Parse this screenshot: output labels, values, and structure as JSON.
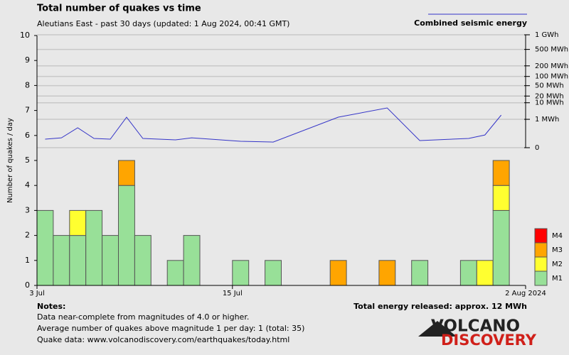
{
  "chart_data": {
    "type": "bar",
    "stacked": true,
    "title": "Total number of quakes vs time",
    "subtitle": "Aleutians East - past 30 days (updated: 1 Aug 2024, 00:41 GMT)",
    "y_label": "Number of quakes / day",
    "x": [
      0,
      1,
      2,
      3,
      4,
      5,
      6,
      7,
      8,
      9,
      10,
      11,
      12,
      13,
      14,
      15,
      16,
      17,
      18,
      19,
      20,
      21,
      22,
      23,
      24,
      25,
      26,
      27,
      28,
      29
    ],
    "xlim": [
      0,
      30
    ],
    "xticks": [
      {
        "value": 0,
        "label": "3 Jul"
      },
      {
        "value": 12,
        "label": "15 Jul"
      },
      {
        "value": 30,
        "label": "2 Aug 2024"
      }
    ],
    "ylim": [
      0,
      10
    ],
    "yticks": [
      0,
      1,
      2,
      3,
      4,
      5,
      6,
      7,
      8,
      9,
      10
    ],
    "y2lim": [
      0,
      1000
    ],
    "y2scale": "power",
    "y2exponent": 0.2,
    "y2ticks": [
      {
        "value": 0,
        "label": "0"
      },
      {
        "value": 1,
        "label": "1 MWh"
      },
      {
        "value": 10,
        "label": "10 MWh"
      },
      {
        "value": 20,
        "label": "20 MWh"
      },
      {
        "value": 50,
        "label": "50 MWh"
      },
      {
        "value": 100,
        "label": "100 MWh"
      },
      {
        "value": 200,
        "label": "200 MWh"
      },
      {
        "value": 500,
        "label": "500 MWh"
      },
      {
        "value": 1000,
        "label": "1 GWh"
      }
    ],
    "grid": true,
    "series": [
      {
        "name": "M1",
        "color": "#98e098",
        "values": [
          3,
          2,
          2,
          3,
          2,
          4,
          2,
          0,
          1,
          2,
          0,
          0,
          1,
          0,
          1,
          0,
          0,
          0,
          0,
          0,
          0,
          0,
          0,
          1,
          0,
          0,
          1,
          0,
          3,
          0
        ]
      },
      {
        "name": "M2",
        "color": "#ffff30",
        "values": [
          0,
          0,
          1,
          0,
          0,
          0,
          0,
          0,
          0,
          0,
          0,
          0,
          0,
          0,
          0,
          0,
          0,
          0,
          0,
          0,
          0,
          0,
          0,
          0,
          0,
          0,
          0,
          1,
          1,
          0
        ]
      },
      {
        "name": "M3",
        "color": "#ffa500",
        "values": [
          0,
          0,
          0,
          0,
          0,
          1,
          0,
          0,
          0,
          0,
          0,
          0,
          0,
          0,
          0,
          0,
          0,
          0,
          1,
          0,
          0,
          1,
          0,
          0,
          0,
          0,
          0,
          0,
          1,
          0
        ]
      },
      {
        "name": "M4",
        "color": "#ff0000",
        "values": [
          0,
          0,
          0,
          0,
          0,
          0,
          0,
          0,
          0,
          0,
          0,
          0,
          0,
          0,
          0,
          0,
          0,
          0,
          0,
          0,
          0,
          0,
          0,
          0,
          0,
          0,
          0,
          0,
          0,
          0
        ]
      },
      {
        "name": "Combined seismic energy",
        "type": "line",
        "axis": "y2",
        "color": "#3535c8",
        "x": [
          0.5,
          1.5,
          2.5,
          3.5,
          4.5,
          5.5,
          6.5,
          8.5,
          9.5,
          12.5,
          14.5,
          18.5,
          21.5,
          23.5,
          26.5,
          27.5,
          28.5
        ],
        "values": [
          0.0024,
          0.005,
          0.17,
          0.0036,
          0.0024,
          1.44,
          0.0036,
          0.0016,
          0.005,
          0.0006,
          0.0003,
          1.44,
          5.4,
          0.001,
          0.0036,
          0.018,
          2.0
        ]
      }
    ]
  },
  "total_energy": "Total energy released: approx. 12 MWh",
  "notes": {
    "heading": "Notes:",
    "lines": [
      "Data near-complete from magnitudes of 4.0 or higher.",
      "Average number of quakes above magnitude 1 per day: 1 (total: 35)",
      "Quake data: www.volcanodiscovery.com/earthquakes/today.html"
    ]
  },
  "logo": {
    "top": "VOLCANO",
    "bottom": "DISCOVERY"
  }
}
